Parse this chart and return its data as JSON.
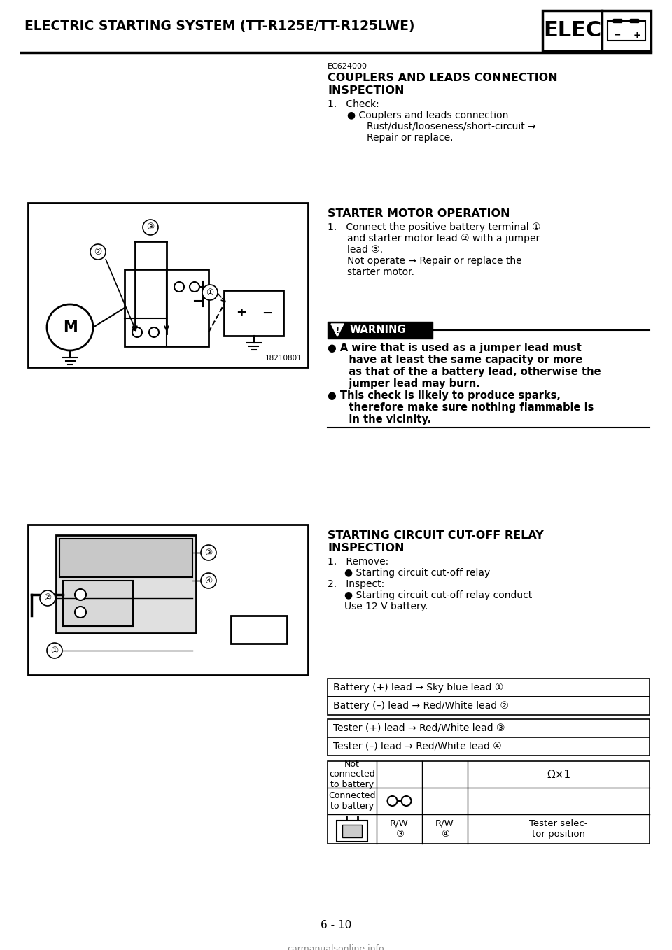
{
  "page_title": "ELECTRIC STARTING SYSTEM (TT-R125E/TT-R125LWE)",
  "elec_label": "ELEC",
  "page_num": "6 - 10",
  "watermark": "carmanualsonline.info",
  "section1_code": "EC624000",
  "section1_title_line1": "COUPLERS AND LEADS CONNECTION",
  "section1_title_line2": "INSPECTION",
  "section1_items": [
    {
      "indent": 0,
      "text": "1.   Check:"
    },
    {
      "indent": 1,
      "text": "● Couplers and leads connection"
    },
    {
      "indent": 2,
      "text": "Rust/dust/looseness/short-circuit →"
    },
    {
      "indent": 2,
      "text": "Repair or replace."
    }
  ],
  "section2_title": "STARTER MOTOR OPERATION",
  "section2_items": [
    {
      "indent": 0,
      "text": "1.   Connect the positive battery terminal ①"
    },
    {
      "indent": 1,
      "text": "and starter motor lead ② with a jumper"
    },
    {
      "indent": 1,
      "text": "lead ③."
    },
    {
      "indent": 1,
      "text": "Not operate → Repair or replace the"
    },
    {
      "indent": 1,
      "text": "starter motor."
    }
  ],
  "warning_title": "WARNING",
  "warning_items": [
    {
      "bullet": true,
      "text": "A wire that is used as a jumper lead must"
    },
    {
      "bullet": false,
      "text": "have at least the same capacity or more"
    },
    {
      "bullet": false,
      "text": "as that of the a battery lead, otherwise the"
    },
    {
      "bullet": false,
      "text": "jumper lead may burn."
    },
    {
      "bullet": true,
      "text": "This check is likely to produce sparks,"
    },
    {
      "bullet": false,
      "text": "therefore make sure nothing flammable is"
    },
    {
      "bullet": false,
      "text": "in the vicinity."
    }
  ],
  "section3_title_line1": "STARTING CIRCUIT CUT-OFF RELAY",
  "section3_title_line2": "INSPECTION",
  "section3_items": [
    {
      "indent": 0,
      "text": "1.   Remove:"
    },
    {
      "indent": 1,
      "text": "● Starting circuit cut-off relay"
    },
    {
      "indent": 0,
      "text": "2.   Inspect:"
    },
    {
      "indent": 1,
      "text": "● Starting circuit cut-off relay conduct"
    },
    {
      "indent": 1,
      "text": "Use 12 V battery."
    }
  ],
  "table1_line1": "Battery (+) lead → Sky blue lead ①",
  "table1_line2": "Battery (–) lead → Red/White lead ②",
  "table2_line1": "Tester (+) lead → Red/White lead ③",
  "table2_line2": "Tester (–) lead → Red/White lead ④",
  "table3_col1_header": "",
  "table3_col2_header": "R/W\n③",
  "table3_col3_header": "R/W\n④",
  "table3_col4_header": "Tester selec-\ntor position",
  "table3_row1_label": "Connected\nto battery",
  "table3_row2_label": "Not\nconnected\nto battery",
  "table3_omega": "Ω×1",
  "image_num1": "18210801",
  "bg_color": "#ffffff",
  "text_color": "#000000"
}
